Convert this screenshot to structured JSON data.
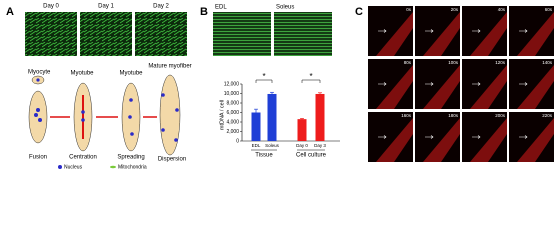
{
  "panel_a": {
    "label": "A",
    "days": [
      "Day 0",
      "Day 1",
      "Day 2"
    ],
    "stages": [
      "Myocyte",
      "Myotube",
      "Myotube",
      "Mature myofiber"
    ],
    "steps": [
      "Fusion",
      "Centration",
      "Spreading",
      "Dispersion"
    ],
    "legend": [
      "Nucleus",
      "Mitochondria"
    ]
  },
  "panel_b": {
    "label": "B",
    "images": [
      "EDL",
      "Soleus"
    ],
    "chart_data": {
      "type": "bar",
      "y_label": "mtDNA / cell",
      "categories": [
        "EDL",
        "Soleus",
        "Day 0",
        "Day 3"
      ],
      "values": [
        6000,
        9900,
        4600,
        9900
      ],
      "errors": [
        700,
        350,
        150,
        250
      ],
      "colors": [
        "#1f3fd6",
        "#1f3fd6",
        "#ee1c1c",
        "#ee1c1c"
      ],
      "groups": [
        "Tissue",
        "Cell culture"
      ],
      "significance": [
        "*",
        "*"
      ],
      "ylim": [
        0,
        12000
      ],
      "yticks": [
        0,
        {
          "value": 2000,
          "label": "2,000"
        },
        {
          "value": 4000,
          "label": "4,000"
        },
        {
          "value": 6000,
          "label": "6,000"
        },
        {
          "value": 8000,
          "label": "8,000"
        },
        {
          "value": 10000,
          "label": "10,000"
        },
        {
          "value": 12000,
          "label": "12,000"
        }
      ]
    }
  },
  "panel_c": {
    "label": "C",
    "times": [
      "0s",
      "20s",
      "40s",
      "60s",
      "80s",
      "100s",
      "120s",
      "140s",
      "160s",
      "180s",
      "200s",
      "220s"
    ]
  }
}
